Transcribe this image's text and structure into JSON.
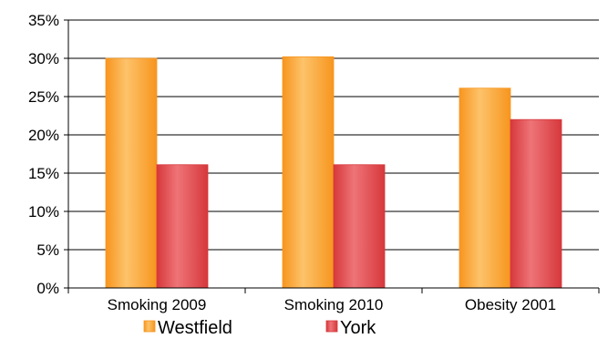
{
  "chart_data": {
    "type": "bar",
    "title": "",
    "xlabel": "",
    "ylabel": "",
    "categories": [
      "Smoking 2009",
      "Smoking 2010",
      "Obesity 2001"
    ],
    "series": [
      {
        "name": "Westfield",
        "values": [
          30,
          30.2,
          26.1
        ],
        "color": "#F7951E",
        "highlight": "#FDC36A"
      },
      {
        "name": "York",
        "values": [
          16.1,
          16.1,
          22
        ],
        "color": "#D6383C",
        "highlight": "#EE7477"
      }
    ],
    "ylim": [
      0,
      35
    ],
    "yticks": [
      0,
      5,
      10,
      15,
      20,
      25,
      30,
      35
    ],
    "ytick_labels": [
      "0%",
      "5%",
      "10%",
      "15%",
      "20%",
      "25%",
      "30%",
      "35%"
    ],
    "grid": true,
    "legend_position": "bottom"
  }
}
